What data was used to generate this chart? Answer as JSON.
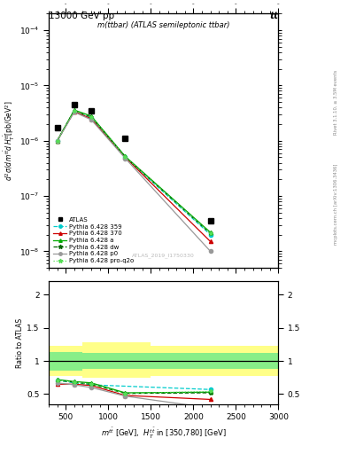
{
  "title_top": "13000 GeV pp",
  "title_top_right": "tt",
  "plot_title": "m(ttbar) (ATLAS semileptonic ttbar)",
  "watermark": "ATLAS_2019_I1750330",
  "right_label_top": "Rivet 3.1.10, ≥ 3.5M events",
  "right_label_bottom": "mcplots.cern.ch [arXiv:1306.3436]",
  "ylabel_ratio": "Ratio to ATLAS",
  "xlabel": "m^{tbar{t}} [GeV],  H_T^{tbar{t}} in [350,780] [GeV]",
  "ylim_main": [
    5e-09,
    0.0002
  ],
  "ylim_ratio": [
    0.35,
    2.2
  ],
  "xlim": [
    300,
    3000
  ],
  "x_data": [
    400,
    600,
    800,
    1200,
    2200
  ],
  "atlas_data": [
    1.7e-06,
    4.5e-06,
    3.5e-06,
    1.1e-06,
    3.5e-08
  ],
  "pythia_359": [
    1e-06,
    3.4e-06,
    2.6e-06,
    5e-07,
    2e-08
  ],
  "pythia_370": [
    1e-06,
    3.4e-06,
    2.5e-06,
    5e-07,
    1.5e-08
  ],
  "pythia_a": [
    1e-06,
    3.6e-06,
    2.8e-06,
    5.2e-07,
    2.2e-08
  ],
  "pythia_dw": [
    1e-06,
    3.5e-06,
    2.7e-06,
    5.1e-07,
    2.1e-08
  ],
  "pythia_p0": [
    1e-06,
    3.3e-06,
    2.4e-06,
    4.8e-07,
    1e-08
  ],
  "pythia_prq": [
    1e-06,
    3.5e-06,
    2.7e-06,
    5.1e-07,
    2.1e-08
  ],
  "ratio_359": [
    0.71,
    0.67,
    0.64,
    null,
    0.57
  ],
  "ratio_370": [
    0.65,
    0.65,
    0.63,
    0.48,
    0.42
  ],
  "ratio_a": [
    0.72,
    0.69,
    0.67,
    0.52,
    0.53
  ],
  "ratio_dw": [
    0.71,
    0.68,
    0.65,
    0.51,
    0.52
  ],
  "ratio_p0": [
    0.67,
    0.64,
    0.6,
    0.47,
    0.29
  ],
  "ratio_prq": [
    0.71,
    0.68,
    0.65,
    0.51,
    0.54
  ],
  "color_359": "#00cccc",
  "color_370": "#cc0000",
  "color_a": "#00aa00",
  "color_dw": "#006600",
  "color_p0": "#999999",
  "color_prq": "#55dd55"
}
